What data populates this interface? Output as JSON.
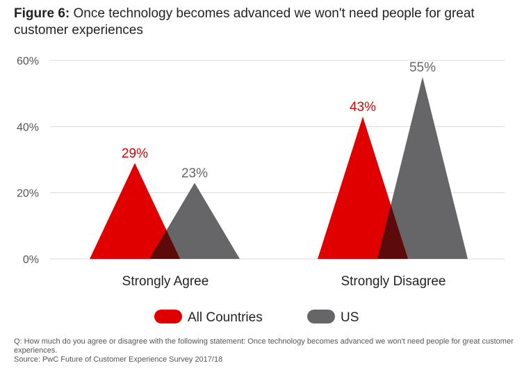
{
  "title": {
    "figure_label": "Figure 6:",
    "text": "Once technology becomes advanced we won't need people for great customer experiences"
  },
  "colors": {
    "all_countries": "#e00000",
    "us": "#666668",
    "overlap": "#5c0a0a",
    "grid": "#d8d8d8",
    "axis_text": "#555555"
  },
  "chart_data": {
    "type": "area",
    "title": "Once technology becomes advanced we won't need people for great customer experiences",
    "categories": [
      "Strongly Agree",
      "Strongly Disagree"
    ],
    "series": [
      {
        "name": "All Countries",
        "values": [
          29,
          43
        ],
        "labels": [
          "29%",
          "43%"
        ]
      },
      {
        "name": "US",
        "values": [
          23,
          55
        ],
        "labels": [
          "23%",
          "55%"
        ]
      }
    ],
    "yticks": [
      "0%",
      "20%",
      "40%",
      "60%"
    ],
    "ytick_values": [
      0,
      20,
      40,
      60
    ],
    "ylim": [
      0,
      60
    ],
    "grid": true,
    "legend": "bottom-center"
  },
  "notes": {
    "question": "Q: How much do you agree or disagree with the following statement: Once technology becomes advanced we won't need people for great customer experiences.",
    "source": "Source: PwC Future of Customer Experience Survey 2017/18"
  }
}
